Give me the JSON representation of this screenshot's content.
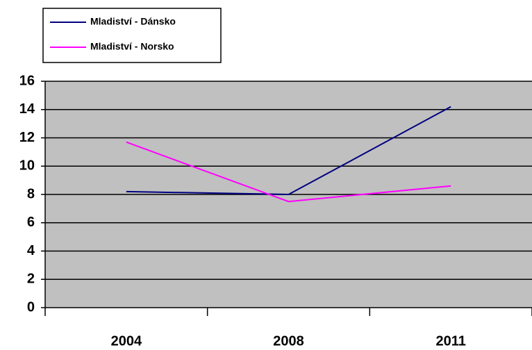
{
  "chart_data": {
    "type": "line",
    "categories": [
      "2004",
      "2008",
      "2011"
    ],
    "series": [
      {
        "name": "Mladiství - Dánsko",
        "color": "#000080",
        "values": [
          8.2,
          8.0,
          14.2
        ]
      },
      {
        "name": "Mladiství - Norsko",
        "color": "#ff00ff",
        "values": [
          11.7,
          7.5,
          8.6
        ]
      }
    ],
    "ylim": [
      0,
      16
    ],
    "yticks": [
      0,
      2,
      4,
      6,
      8,
      10,
      12,
      14,
      16
    ],
    "grid": true,
    "plot_background": "#c0c0c0",
    "legend": "top-left"
  }
}
